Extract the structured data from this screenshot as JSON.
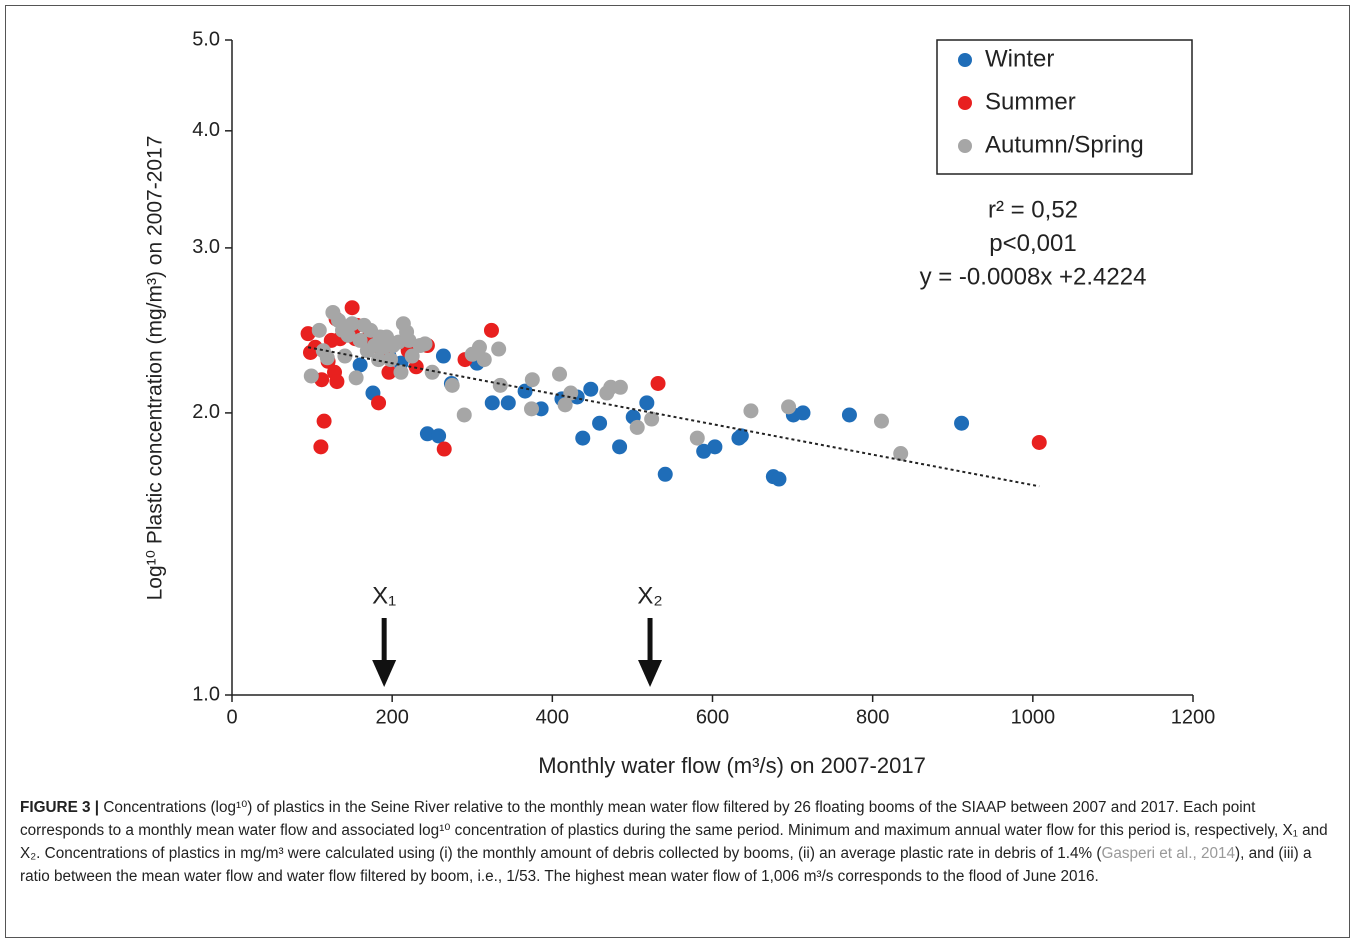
{
  "chart_data": {
    "type": "scatter",
    "ylabel": "Log¹⁰ Plastic concentration (mg/m³) on 2007-2017",
    "xlabel": "Monthly water flow (m³/s) on 2007-2017",
    "xlim": [
      0,
      1200
    ],
    "xticks": [
      0,
      200,
      400,
      600,
      800,
      1000,
      1200
    ],
    "ylim": [
      1,
      5
    ],
    "y_log": true,
    "yticks": [
      {
        "value": 1,
        "label": "1.0"
      },
      {
        "value": 2,
        "label": "2.0"
      },
      {
        "value": 3,
        "label": "3.0"
      },
      {
        "value": 4,
        "label": "4.0"
      },
      {
        "value": 5,
        "label": "5.0"
      }
    ],
    "legend": "top-right",
    "series": [
      {
        "name": "Winter",
        "color": "#1f6db8",
        "x": [
          160,
          176,
          196,
          211,
          264,
          274,
          244,
          258,
          306,
          325,
          345,
          366,
          386,
          412,
          431,
          448,
          438,
          459,
          484,
          501,
          518,
          541,
          589,
          603,
          633,
          636,
          676,
          683,
          701,
          713,
          771,
          911
        ],
        "values": [
          2.25,
          2.1,
          2.3,
          2.26,
          2.3,
          2.15,
          1.9,
          1.89,
          2.26,
          2.05,
          2.05,
          2.11,
          2.02,
          2.07,
          2.08,
          2.12,
          1.88,
          1.95,
          1.84,
          1.98,
          2.05,
          1.72,
          1.82,
          1.84,
          1.88,
          1.89,
          1.71,
          1.7,
          1.99,
          2.0,
          1.99,
          1.95
        ]
      },
      {
        "name": "Summer",
        "color": "#e8201f",
        "x": [
          95,
          98,
          104,
          111,
          112,
          115,
          120,
          124,
          128,
          130,
          131,
          135,
          150,
          154,
          156,
          171,
          183,
          186,
          190,
          196,
          220,
          222,
          230,
          244,
          265,
          291,
          324,
          532,
          1008
        ],
        "values": [
          2.43,
          2.32,
          2.35,
          1.84,
          2.17,
          1.96,
          2.27,
          2.39,
          2.21,
          2.52,
          2.16,
          2.4,
          2.59,
          2.4,
          2.48,
          2.41,
          2.05,
          2.34,
          2.33,
          2.21,
          2.33,
          2.35,
          2.24,
          2.36,
          1.83,
          2.28,
          2.45,
          2.15,
          1.86
        ]
      },
      {
        "name": "Autumn/Spring",
        "color": "#a6a6a6",
        "x": [
          99,
          109,
          114,
          119,
          126,
          133,
          138,
          141,
          145,
          150,
          155,
          160,
          165,
          169,
          173,
          178,
          183,
          185,
          189,
          193,
          198,
          201,
          208,
          211,
          214,
          218,
          221,
          225,
          235,
          241,
          250,
          275,
          290,
          300,
          309,
          315,
          335,
          333,
          374,
          375,
          409,
          416,
          423,
          468,
          473,
          485,
          506,
          524,
          581,
          648,
          695,
          811,
          835
        ],
        "values": [
          2.19,
          2.45,
          2.33,
          2.29,
          2.56,
          2.51,
          2.45,
          2.3,
          2.42,
          2.49,
          2.18,
          2.39,
          2.48,
          2.33,
          2.45,
          2.36,
          2.28,
          2.41,
          2.35,
          2.41,
          2.28,
          2.36,
          2.38,
          2.21,
          2.49,
          2.44,
          2.39,
          2.3,
          2.36,
          2.37,
          2.21,
          2.14,
          1.99,
          2.31,
          2.35,
          2.28,
          2.14,
          2.34,
          2.02,
          2.17,
          2.2,
          2.04,
          2.1,
          2.1,
          2.13,
          2.13,
          1.93,
          1.97,
          1.88,
          2.01,
          2.03,
          1.96,
          1.81
        ]
      }
    ],
    "trendline": {
      "x": [
        95,
        1008
      ],
      "values": [
        2.35,
        1.67
      ]
    },
    "annotations": [
      "r² = 0,52",
      "p<0,001",
      "y = -0.0008x +2.4224"
    ],
    "arrows": [
      {
        "label": "X₁",
        "x": 190
      },
      {
        "label": "X₂",
        "x": 522
      }
    ]
  },
  "caption": {
    "label": "FIGURE 3 |",
    "parts": [
      "Concentrations (log¹⁰) of plastics in the Seine River relative to the monthly mean water flow filtered by 26 floating booms of the SIAAP between 2007 and 2017. Each point corresponds to a monthly mean water flow and associated log¹⁰ concentration of plastics during the same period. Minimum and maximum annual water flow for this period is, respectively, X₁ and X₂. Concentrations of plastics in mg/m³ were calculated using (i) the monthly amount of debris collected by booms, (ii) an average plastic rate in debris of 1.4% (",
      "Gasperi et al., 2014",
      "), and (iii) a ratio between the mean water flow and water flow filtered by boom, i.e., 1/53. The highest mean water flow of 1,006 m³/s corresponds to the flood of June 2016."
    ]
  }
}
